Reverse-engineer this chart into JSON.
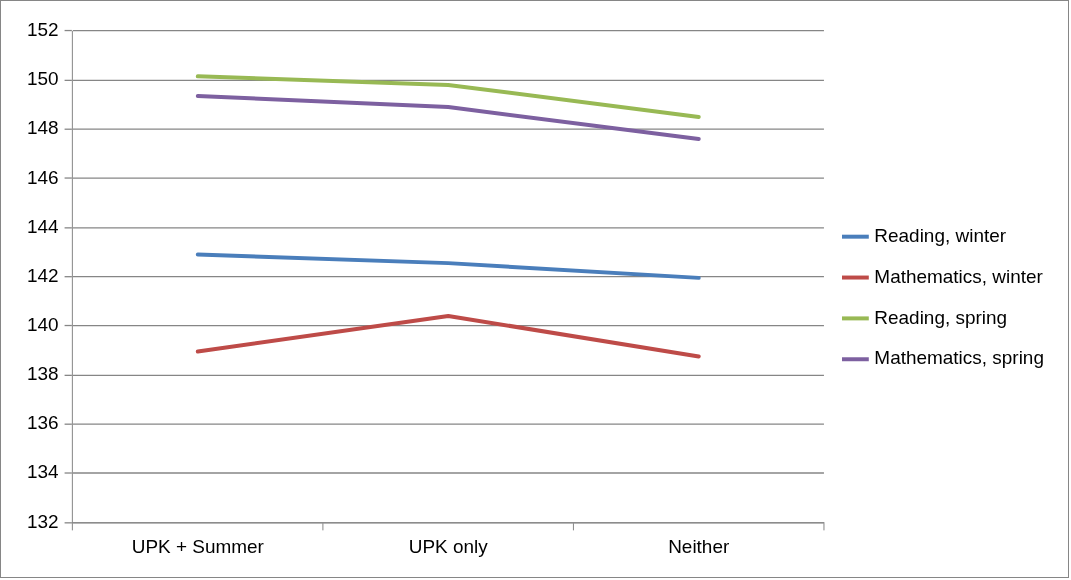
{
  "chart_data": {
    "type": "line",
    "categories": [
      "UPK + Summer",
      "UPK only",
      "Neither"
    ],
    "series": [
      {
        "name": "Reading, winter",
        "color": "#4a7ebb",
        "values": [
          142.9,
          142.55,
          141.95
        ]
      },
      {
        "name": "Mathematics, winter",
        "color": "#be4b48",
        "values": [
          138.95,
          140.4,
          138.75
        ]
      },
      {
        "name": "Reading, spring",
        "color": "#98b954",
        "values": [
          150.15,
          149.8,
          148.5
        ]
      },
      {
        "name": "Mathematics, spring",
        "color": "#7d60a0",
        "values": [
          149.35,
          148.9,
          147.6
        ]
      }
    ],
    "ylim": [
      132,
      152
    ],
    "yticks": [
      132,
      134,
      136,
      138,
      140,
      142,
      144,
      146,
      148,
      150,
      152
    ],
    "grid": "y",
    "legend": "right",
    "marker": "none",
    "line_style": "solid"
  }
}
